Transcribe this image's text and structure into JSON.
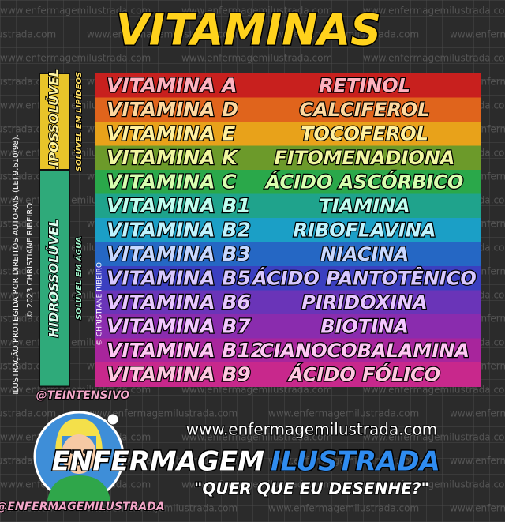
{
  "header": {
    "title": "VITAMINAS"
  },
  "watermark": "www.enfermagemilustrada.com",
  "groups": [
    {
      "label": "LIPOSSOLÚVEL",
      "sublabel": "SOLÚVEL EM LIPÍDEOS"
    },
    {
      "label": "HIDROSSOLÚVEL",
      "sublabel": "SOLÚVEL EM ÁGUA"
    }
  ],
  "rows": [
    {
      "vitamin": "VITAMINA A",
      "name": "RETINOL"
    },
    {
      "vitamin": "VITAMINA D",
      "name": "CALCIFEROL"
    },
    {
      "vitamin": "VITAMINA E",
      "name": "TOCOFEROL"
    },
    {
      "vitamin": "VITAMINA K",
      "name": "FITOMENADIONA"
    },
    {
      "vitamin": "VITAMINA C",
      "name": "ÁCIDO ASCÓRBICO"
    },
    {
      "vitamin": "VITAMINA B1",
      "name": "TIAMINA"
    },
    {
      "vitamin": "VITAMINA B2",
      "name": "RIBOFLAVINA"
    },
    {
      "vitamin": "VITAMINA B3",
      "name": "NIACINA"
    },
    {
      "vitamin": "VITAMINA B5",
      "name": "ÁCIDO PANTOTÊNICO"
    },
    {
      "vitamin": "VITAMINA B6",
      "name": "PIRIDOXINA"
    },
    {
      "vitamin": "VITAMINA B7",
      "name": "BIOTINA"
    },
    {
      "vitamin": "VITAMINA B12",
      "name": "CIANOCOBALAMINA"
    },
    {
      "vitamin": "VITAMINA B9",
      "name": "ÁCIDO FÓLICO"
    }
  ],
  "credits": {
    "law": "ILUSTRAÇÃO PROTEGIDA POR DIREITOS AUTORAIS (LEI 9.610/98).",
    "copyright": "© 2023 CHRISTIANE RIBEIRO",
    "copyright_short": "© CHRISTIANE RIBEIRO"
  },
  "footer": {
    "handle_top": "@TEINTENSIVO",
    "site": "www.enfermagemilustrada.com",
    "brand_1": "ENFERMAGEM",
    "brand_2": "ILUSTRADA",
    "slogan": "\"QUER QUE EU DESENHE?\"",
    "handle_bottom": "@ENFERMAGEMILUSTRADA"
  }
}
